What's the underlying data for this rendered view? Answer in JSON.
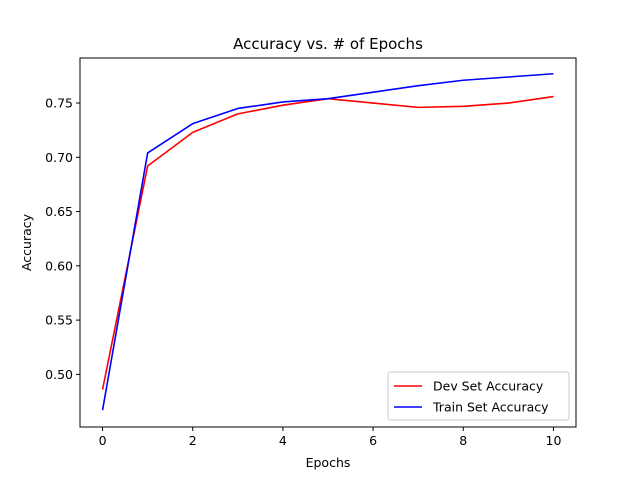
{
  "chart_data": {
    "type": "line",
    "title": "Accuracy vs. # of Epochs",
    "xlabel": "Epochs",
    "ylabel": "Accuracy",
    "xlim": [
      -0.5,
      10.5
    ],
    "ylim": [
      0.4515,
      0.7915
    ],
    "x_ticks": [
      0,
      2,
      4,
      6,
      8,
      10
    ],
    "x_tick_labels": [
      "0",
      "2",
      "4",
      "6",
      "8",
      "10"
    ],
    "y_ticks": [
      0.5,
      0.55,
      0.6,
      0.65,
      0.7,
      0.75
    ],
    "y_tick_labels": [
      "0.50",
      "0.55",
      "0.60",
      "0.65",
      "0.70",
      "0.75"
    ],
    "grid": false,
    "legend_position": "lower-right",
    "x": [
      0,
      1,
      2,
      3,
      4,
      5,
      6,
      7,
      8,
      9,
      10
    ],
    "series": [
      {
        "name": "Dev Set Accuracy",
        "color": "#ff0000",
        "values": [
          0.486,
          0.692,
          0.723,
          0.74,
          0.748,
          0.754,
          0.75,
          0.746,
          0.747,
          0.75,
          0.756
        ]
      },
      {
        "name": "Train Set Accuracy",
        "color": "#0000ff",
        "values": [
          0.467,
          0.704,
          0.731,
          0.745,
          0.751,
          0.754,
          0.76,
          0.766,
          0.771,
          0.774,
          0.777
        ]
      }
    ]
  }
}
